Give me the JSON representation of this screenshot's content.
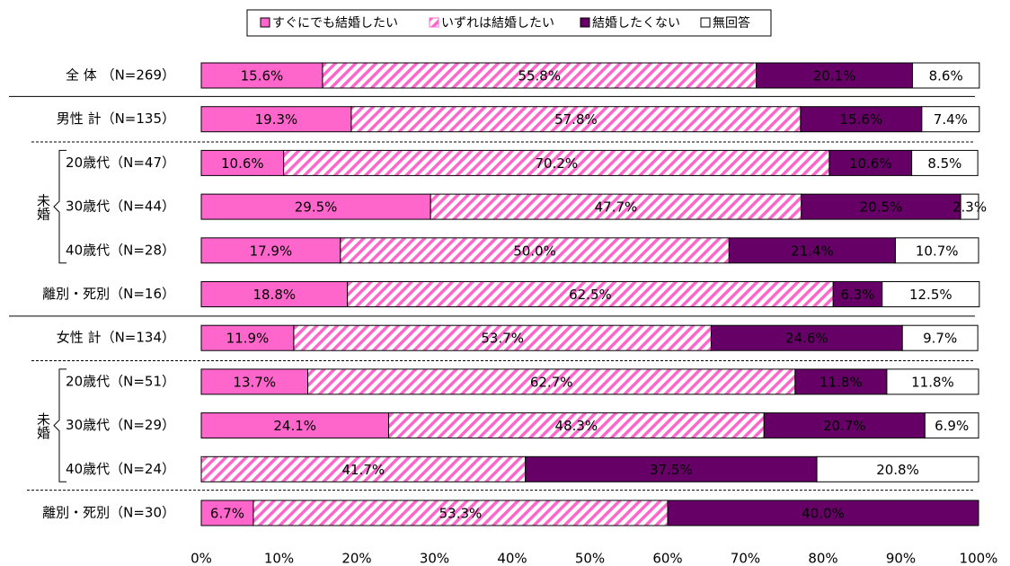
{
  "chart_data": {
    "type": "stacked_bar_horizontal",
    "categories": [
      "全 体 （N=269）",
      "男性 計（N=135）",
      "20歳代（N=47）",
      "30歳代（N=44）",
      "40歳代（N=28）",
      "離別・死別（N=16）",
      "女性 計（N=134）",
      "20歳代（N=51）",
      "30歳代（N=29）",
      "40歳代（N=24）",
      "離別・死別（N=30）"
    ],
    "group_labels": [
      "未婚",
      "未婚"
    ],
    "series": [
      {
        "name": "すぐにでも結婚したい",
        "color": "#ff66cc",
        "pattern": "solid",
        "values": [
          15.6,
          19.3,
          10.6,
          29.5,
          17.9,
          18.8,
          11.9,
          13.7,
          24.1,
          0,
          6.7
        ],
        "value_labels": [
          "15.6%",
          "19.3%",
          "10.6%",
          "29.5%",
          "17.9%",
          "18.8%",
          "11.9%",
          "13.7%",
          "24.1%",
          null,
          "6.7%"
        ]
      },
      {
        "name": "いずれは結婚したい",
        "color": "#ff66cc",
        "pattern": "hatch",
        "values": [
          55.8,
          57.8,
          70.2,
          47.7,
          50.0,
          62.5,
          53.7,
          62.7,
          48.3,
          41.7,
          53.3
        ],
        "value_labels": [
          "55.8%",
          "57.8%",
          "70.2%",
          "47.7%",
          "50.0%",
          "62.5%",
          "53.7%",
          "62.7%",
          "48.3%",
          "41.7%",
          "53.3%"
        ]
      },
      {
        "name": "結婚したくない",
        "color": "#660066",
        "pattern": "solid",
        "values": [
          20.1,
          15.6,
          10.6,
          20.5,
          21.4,
          6.3,
          24.6,
          11.8,
          20.7,
          37.5,
          40.0
        ],
        "value_labels": [
          "20.1%",
          "15.6%",
          "10.6%",
          "20.5%",
          "21.4%",
          "6.3%",
          "24.6%",
          "11.8%",
          "20.7%",
          "37.5%",
          "40.0%"
        ]
      },
      {
        "name": "無回答",
        "color": "#ffffff",
        "pattern": "solid",
        "values": [
          8.6,
          7.4,
          8.5,
          2.3,
          10.7,
          12.5,
          9.7,
          11.8,
          6.9,
          20.8,
          0
        ],
        "value_labels": [
          "8.6%",
          "7.4%",
          "8.5%",
          "2.3%",
          "10.7%",
          "12.5%",
          "9.7%",
          "11.8%",
          "6.9%",
          "20.8%",
          null
        ]
      }
    ],
    "xlim": [
      0,
      100
    ],
    "xticks": [
      {
        "value": 0,
        "label": "0%"
      },
      {
        "value": 10,
        "label": "10%"
      },
      {
        "value": 20,
        "label": "20%"
      },
      {
        "value": 30,
        "label": "30%"
      },
      {
        "value": 40,
        "label": "40%"
      },
      {
        "value": 50,
        "label": "50%"
      },
      {
        "value": 60,
        "label": "60%"
      },
      {
        "value": 70,
        "label": "70%"
      },
      {
        "value": 80,
        "label": "80%"
      },
      {
        "value": 90,
        "label": "90%"
      },
      {
        "value": 100,
        "label": "100%"
      }
    ],
    "legend": "top"
  }
}
